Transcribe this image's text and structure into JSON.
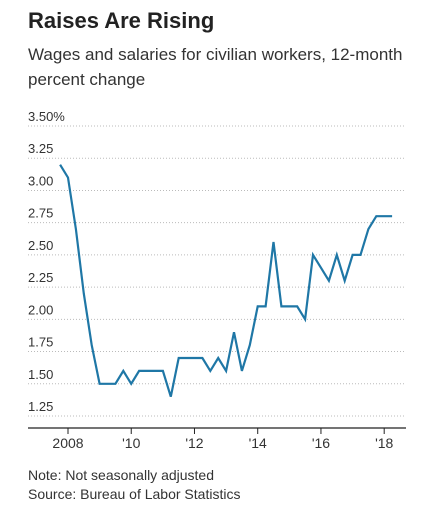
{
  "header": {
    "title": "Raises Are Rising",
    "subtitle": "Wages and salaries for civilian workers, 12-month percent change"
  },
  "footer": {
    "note": "Note: Not seasonally adjusted",
    "source": "Source: Bureau of Labor Statistics"
  },
  "colors": {
    "line": "#1f77a6",
    "grid": "#bbbbbb",
    "axis": "#222222",
    "text": "#333333"
  },
  "chart_data": {
    "type": "line",
    "title": "Raises Are Rising",
    "subtitle": "Wages and salaries for civilian workers, 12-month percent change",
    "xlabel": "",
    "ylabel": "",
    "xlim": [
      2008.0,
      2018.5
    ],
    "ylim": [
      1.25,
      3.5
    ],
    "grid": true,
    "yticks": [
      {
        "value": 3.5,
        "label": "3.50%"
      },
      {
        "value": 3.25,
        "label": "3.25"
      },
      {
        "value": 3.0,
        "label": "3.00"
      },
      {
        "value": 2.75,
        "label": "2.75"
      },
      {
        "value": 2.5,
        "label": "2.50"
      },
      {
        "value": 2.25,
        "label": "2.25"
      },
      {
        "value": 2.0,
        "label": "2.00"
      },
      {
        "value": 1.75,
        "label": "1.75"
      },
      {
        "value": 1.5,
        "label": "1.50"
      },
      {
        "value": 1.25,
        "label": "1.25"
      }
    ],
    "xticks": [
      {
        "value": 2008,
        "label": "2008"
      },
      {
        "value": 2010,
        "label": "'10"
      },
      {
        "value": 2012,
        "label": "'12"
      },
      {
        "value": 2014,
        "label": "'14"
      },
      {
        "value": 2016,
        "label": "'16"
      },
      {
        "value": 2018,
        "label": "'18"
      }
    ],
    "series": [
      {
        "name": "",
        "x": [
          2007.75,
          2008.0,
          2008.25,
          2008.5,
          2008.75,
          2009.0,
          2009.25,
          2009.5,
          2009.75,
          2010.0,
          2010.25,
          2010.5,
          2010.75,
          2011.0,
          2011.25,
          2011.5,
          2011.75,
          2012.0,
          2012.25,
          2012.5,
          2012.75,
          2013.0,
          2013.25,
          2013.5,
          2013.75,
          2014.0,
          2014.25,
          2014.5,
          2014.75,
          2015.0,
          2015.25,
          2015.5,
          2015.75,
          2016.0,
          2016.25,
          2016.5,
          2016.75,
          2017.0,
          2017.25,
          2017.5,
          2017.75,
          2018.0,
          2018.25
        ],
        "values": [
          3.2,
          3.1,
          2.7,
          2.2,
          1.8,
          1.5,
          1.5,
          1.5,
          1.6,
          1.5,
          1.6,
          1.6,
          1.6,
          1.6,
          1.4,
          1.7,
          1.7,
          1.7,
          1.7,
          1.6,
          1.7,
          1.6,
          1.9,
          1.6,
          1.8,
          2.1,
          2.1,
          2.6,
          2.1,
          2.1,
          2.1,
          2.0,
          2.5,
          2.4,
          2.3,
          2.5,
          2.3,
          2.5,
          2.5,
          2.7,
          2.8,
          2.8,
          2.8
        ]
      }
    ]
  }
}
